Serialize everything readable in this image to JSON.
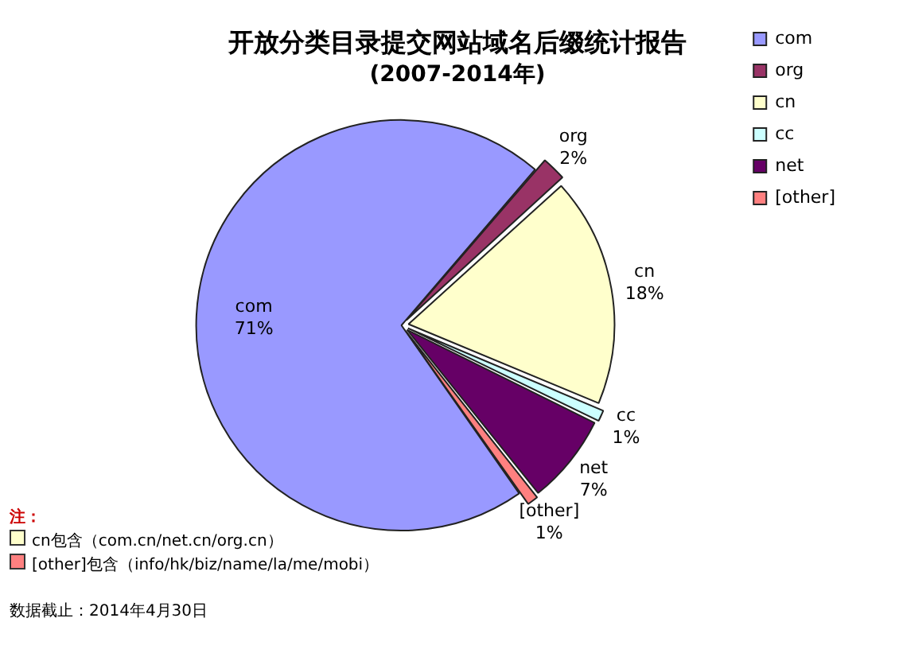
{
  "chart_data": {
    "type": "pie",
    "title": "开放分类目录提交网站域名后缀统计报告",
    "subtitle": "(2007-2014年)",
    "categories": [
      "com",
      "org",
      "cn",
      "cc",
      "net",
      "[other]"
    ],
    "values": [
      71,
      2,
      18,
      1,
      7,
      1
    ],
    "value_labels": [
      "71%",
      "2%",
      "18%",
      "1%",
      "7%",
      "1%"
    ],
    "colors": [
      "#9999ff",
      "#993366",
      "#ffffcc",
      "#ccffff",
      "#660066",
      "#ff8080"
    ],
    "legend": "top right",
    "annotations": [
      "注：",
      "cn包含（com.cn/net.cn/org.cn）",
      "[other]包含（info/hk/biz/name/la/me/mobi）",
      "数据截止：2014年4月30日"
    ]
  }
}
